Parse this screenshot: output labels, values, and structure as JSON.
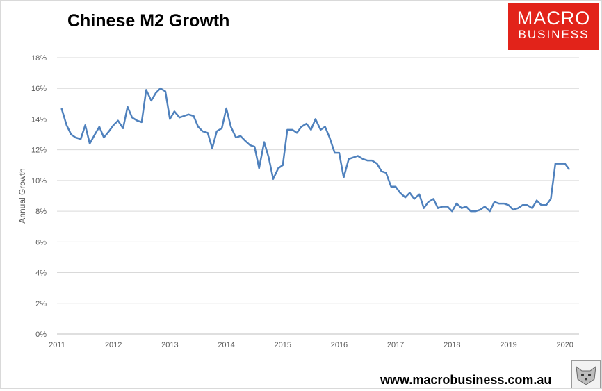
{
  "chart_data": {
    "type": "line",
    "title": "Chinese M2 Growth",
    "xlabel": "",
    "ylabel": "Annual Growth",
    "xlim": [
      2011,
      2020.25
    ],
    "ylim": [
      0,
      18
    ],
    "y_ticks": [
      "0%",
      "2%",
      "4%",
      "6%",
      "8%",
      "10%",
      "12%",
      "14%",
      "16%",
      "18%"
    ],
    "x_ticks": [
      "2011",
      "2012",
      "2013",
      "2014",
      "2015",
      "2016",
      "2017",
      "2018",
      "2019",
      "2020"
    ],
    "grid": true,
    "color": "#4f81bd",
    "series": [
      {
        "x": [
          2011.08,
          2011.17,
          2011.25,
          2011.33,
          2011.42,
          2011.5,
          2011.58,
          2011.67,
          2011.75,
          2011.83,
          2011.92,
          2012.0,
          2012.08,
          2012.17,
          2012.25,
          2012.33,
          2012.42,
          2012.5,
          2012.58,
          2012.67,
          2012.75,
          2012.83,
          2012.92,
          2013.0,
          2013.08,
          2013.17,
          2013.25,
          2013.33,
          2013.42,
          2013.5,
          2013.58,
          2013.67,
          2013.75,
          2013.83,
          2013.92,
          2014.0,
          2014.08,
          2014.17,
          2014.25,
          2014.33,
          2014.42,
          2014.5,
          2014.58,
          2014.67,
          2014.75,
          2014.83,
          2014.92,
          2015.0,
          2015.08,
          2015.17,
          2015.25,
          2015.33,
          2015.42,
          2015.5,
          2015.58,
          2015.67,
          2015.75,
          2015.83,
          2015.92,
          2016.0,
          2016.08,
          2016.17,
          2016.25,
          2016.33,
          2016.42,
          2016.5,
          2016.58,
          2016.67,
          2016.75,
          2016.83,
          2016.92,
          2017.0,
          2017.08,
          2017.17,
          2017.25,
          2017.33,
          2017.42,
          2017.5,
          2017.58,
          2017.67,
          2017.75,
          2017.83,
          2017.92,
          2018.0,
          2018.08,
          2018.17,
          2018.25,
          2018.33,
          2018.42,
          2018.5,
          2018.58,
          2018.67,
          2018.75,
          2018.83,
          2018.92,
          2019.0,
          2019.08,
          2019.17,
          2019.25,
          2019.33,
          2019.42,
          2019.5,
          2019.58,
          2019.67,
          2019.75,
          2019.83,
          2019.92,
          2020.0,
          2020.08
        ],
        "values": [
          14.7,
          13.6,
          13.0,
          12.8,
          12.7,
          13.6,
          12.4,
          13.0,
          13.5,
          12.8,
          13.2,
          13.6,
          13.9,
          13.4,
          14.8,
          14.1,
          13.9,
          13.8,
          15.9,
          15.2,
          15.7,
          16.0,
          15.8,
          14.0,
          14.5,
          14.1,
          14.2,
          14.3,
          14.2,
          13.5,
          13.2,
          13.1,
          12.1,
          13.2,
          13.4,
          14.7,
          13.5,
          12.8,
          12.9,
          12.6,
          12.3,
          12.2,
          10.8,
          12.5,
          11.5,
          10.1,
          10.8,
          11.0,
          13.3,
          13.3,
          13.1,
          13.5,
          13.7,
          13.3,
          14.0,
          13.3,
          13.5,
          12.8,
          11.8,
          11.8,
          10.2,
          11.4,
          11.5,
          11.6,
          11.4,
          11.3,
          11.3,
          11.1,
          10.6,
          10.5,
          9.6,
          9.6,
          9.2,
          8.9,
          9.2,
          8.8,
          9.1,
          8.2,
          8.6,
          8.8,
          8.2,
          8.3,
          8.3,
          8.0,
          8.5,
          8.2,
          8.3,
          8.0,
          8.0,
          8.1,
          8.3,
          8.0,
          8.6,
          8.5,
          8.5,
          8.4,
          8.1,
          8.2,
          8.4,
          8.4,
          8.2,
          8.7,
          8.4,
          8.4,
          8.8,
          11.1,
          11.1,
          11.1,
          10.7
        ]
      }
    ]
  },
  "branding": {
    "logo_line1": "MACRO",
    "logo_line2": "BUSINESS",
    "website": "www.macrobusiness.com.au",
    "logo_color": "#e2231a"
  }
}
